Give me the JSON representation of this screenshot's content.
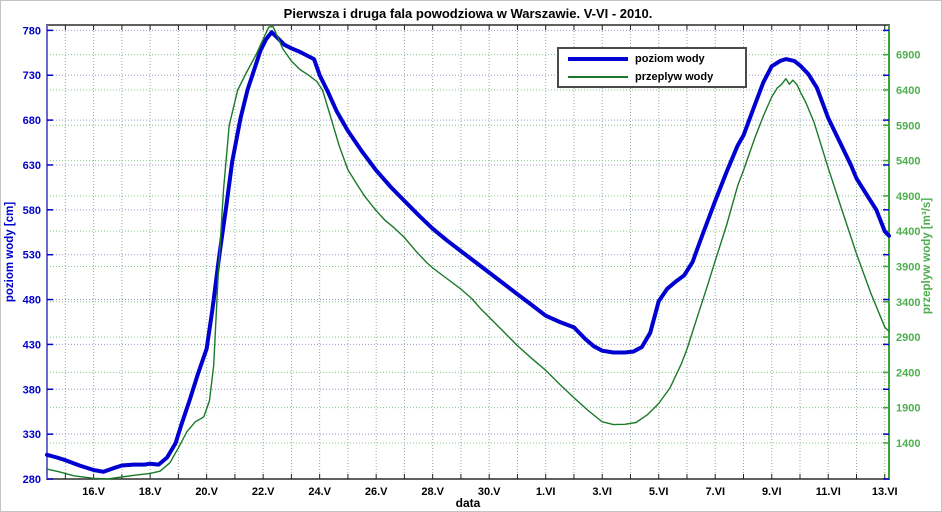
{
  "figure": {
    "title": "Pierwsza i druga fala powodziowa w Warszawie. V-VI - 2010.",
    "xlabel": "data"
  },
  "legend": {
    "entries": [
      {
        "label": "poziom wody",
        "color": "#0000d0",
        "sample_height": 4
      },
      {
        "label": "przeplyw wody",
        "color": "#1b7a2a",
        "sample_height": 2
      }
    ]
  },
  "colors": {
    "level_blue": "#0000d0",
    "flow_green": "#1b7a2a",
    "left_axis_text": "#0000cc",
    "right_axis_text": "#4fae4f",
    "left_spine": "#6a6ad0",
    "right_spine": "#3aa33a",
    "grid_left": "#9898cc",
    "grid_right": "#8cc48c",
    "grid_vertical": "#8fae9a",
    "frame": "#2b2b2b",
    "tick_black": "#222222"
  },
  "chart_data": {
    "type": "line",
    "title": "Pierwsza i druga fala powodziowa w Warszawie. V-VI - 2010.",
    "xlabel": "data",
    "grid": true,
    "legend_position": "top-center-right",
    "x_encoding": "day number read from axis; May: 14-31, June: 32-44 (32 = 1.VI, 44 = 13.VI)",
    "x_axis": {
      "lim": [
        14.35,
        44.15
      ],
      "minor_grid_step": 1,
      "major_tick_positions": [
        16,
        18,
        20,
        22,
        24,
        26,
        28,
        30,
        32,
        34,
        36,
        38,
        40,
        42,
        44
      ],
      "major_tick_labels": [
        "16.V",
        "18.V",
        "20.V",
        "22.V",
        "24.V",
        "26.V",
        "28.V",
        "30.V",
        "1.VI",
        "3.VI",
        "5.VI",
        "7.VI",
        "9.VI",
        "11.VI",
        "13.VI"
      ]
    },
    "left_axis": {
      "label": "poziom wody [cm]",
      "unit": "cm",
      "lim": [
        280,
        786
      ],
      "ticks": [
        280,
        330,
        380,
        430,
        480,
        530,
        580,
        630,
        680,
        730,
        780
      ]
    },
    "right_axis": {
      "label": "przeplyw wody [m³/s]",
      "unit": "m³/s",
      "lim": [
        890,
        7320
      ],
      "ticks": [
        1400,
        1900,
        2400,
        2900,
        3400,
        3900,
        4400,
        4900,
        5400,
        5900,
        6400,
        6900
      ]
    },
    "series": [
      {
        "id": "poziom-wody",
        "name": "poziom wody",
        "axis": "left",
        "color": "#0000d0",
        "width": 4,
        "points": [
          [
            14.35,
            307
          ],
          [
            14.7,
            304
          ],
          [
            15,
            301
          ],
          [
            15.5,
            295
          ],
          [
            16,
            290
          ],
          [
            16.35,
            288
          ],
          [
            16.7,
            292
          ],
          [
            17,
            295
          ],
          [
            17.4,
            296
          ],
          [
            17.8,
            296
          ],
          [
            18,
            297
          ],
          [
            18.3,
            296
          ],
          [
            18.6,
            304
          ],
          [
            18.9,
            320
          ],
          [
            19.1,
            340
          ],
          [
            19.4,
            368
          ],
          [
            19.7,
            398
          ],
          [
            20,
            425
          ],
          [
            20.2,
            468
          ],
          [
            20.45,
            530
          ],
          [
            20.7,
            585
          ],
          [
            20.9,
            633
          ],
          [
            21.2,
            682
          ],
          [
            21.45,
            714
          ],
          [
            21.7,
            738
          ],
          [
            21.9,
            757
          ],
          [
            22.1,
            770
          ],
          [
            22.3,
            778
          ],
          [
            22.5,
            772
          ],
          [
            22.75,
            764
          ],
          [
            23,
            760
          ],
          [
            23.3,
            756
          ],
          [
            23.55,
            752
          ],
          [
            23.8,
            748
          ],
          [
            24,
            730
          ],
          [
            24.3,
            711
          ],
          [
            24.6,
            690
          ],
          [
            25,
            668
          ],
          [
            25.5,
            645
          ],
          [
            26,
            624
          ],
          [
            26.5,
            606
          ],
          [
            27,
            590
          ],
          [
            27.5,
            574
          ],
          [
            28,
            559
          ],
          [
            28.5,
            546
          ],
          [
            29,
            534
          ],
          [
            29.5,
            522
          ],
          [
            30,
            510
          ],
          [
            30.5,
            498
          ],
          [
            31,
            486
          ],
          [
            31.5,
            474
          ],
          [
            32,
            462
          ],
          [
            32.5,
            455
          ],
          [
            33,
            449
          ],
          [
            33.4,
            436
          ],
          [
            33.7,
            428
          ],
          [
            34,
            423
          ],
          [
            34.4,
            421
          ],
          [
            34.8,
            421
          ],
          [
            35.1,
            422
          ],
          [
            35.4,
            427
          ],
          [
            35.7,
            443
          ],
          [
            36,
            478
          ],
          [
            36.3,
            492
          ],
          [
            36.6,
            500
          ],
          [
            36.9,
            507
          ],
          [
            37.2,
            522
          ],
          [
            37.5,
            548
          ],
          [
            38,
            590
          ],
          [
            38.4,
            622
          ],
          [
            38.8,
            652
          ],
          [
            39,
            663
          ],
          [
            39.4,
            697
          ],
          [
            39.7,
            722
          ],
          [
            40,
            740
          ],
          [
            40.3,
            746
          ],
          [
            40.5,
            748
          ],
          [
            40.8,
            746
          ],
          [
            41,
            741
          ],
          [
            41.3,
            731
          ],
          [
            41.6,
            716
          ],
          [
            42,
            682
          ],
          [
            42.4,
            656
          ],
          [
            42.8,
            630
          ],
          [
            43,
            615
          ],
          [
            43.4,
            595
          ],
          [
            43.7,
            580
          ],
          [
            44,
            556
          ],
          [
            44.15,
            551
          ]
        ]
      },
      {
        "id": "przeplyw-wody",
        "name": "przeplyw wody",
        "axis": "right",
        "color": "#1b7a2a",
        "width": 1.4,
        "points": [
          [
            14.35,
            1030
          ],
          [
            14.8,
            990
          ],
          [
            15.3,
            935
          ],
          [
            16,
            900
          ],
          [
            16.5,
            890
          ],
          [
            17,
            920
          ],
          [
            17.5,
            945
          ],
          [
            18,
            970
          ],
          [
            18.35,
            1000
          ],
          [
            18.7,
            1120
          ],
          [
            19,
            1330
          ],
          [
            19.3,
            1560
          ],
          [
            19.6,
            1700
          ],
          [
            19.9,
            1770
          ],
          [
            20.1,
            2000
          ],
          [
            20.25,
            2500
          ],
          [
            20.4,
            3700
          ],
          [
            20.6,
            5000
          ],
          [
            20.8,
            5900
          ],
          [
            21.1,
            6400
          ],
          [
            21.4,
            6640
          ],
          [
            21.75,
            6900
          ],
          [
            22,
            7120
          ],
          [
            22.2,
            7290
          ],
          [
            22.35,
            7300
          ],
          [
            22.5,
            7160
          ],
          [
            22.7,
            6980
          ],
          [
            23,
            6810
          ],
          [
            23.3,
            6690
          ],
          [
            23.6,
            6610
          ],
          [
            23.9,
            6520
          ],
          [
            24.1,
            6400
          ],
          [
            24.4,
            6000
          ],
          [
            24.7,
            5600
          ],
          [
            25,
            5270
          ],
          [
            25.3,
            5075
          ],
          [
            25.6,
            4890
          ],
          [
            26,
            4690
          ],
          [
            26.3,
            4560
          ],
          [
            26.6,
            4460
          ],
          [
            27,
            4310
          ],
          [
            27.4,
            4120
          ],
          [
            27.8,
            3950
          ],
          [
            28,
            3880
          ],
          [
            28.5,
            3730
          ],
          [
            29,
            3580
          ],
          [
            29.4,
            3440
          ],
          [
            29.7,
            3300
          ],
          [
            30,
            3180
          ],
          [
            30.5,
            2980
          ],
          [
            31,
            2780
          ],
          [
            31.5,
            2600
          ],
          [
            32,
            2430
          ],
          [
            32.5,
            2230
          ],
          [
            33,
            2040
          ],
          [
            33.5,
            1860
          ],
          [
            34,
            1700
          ],
          [
            34.4,
            1660
          ],
          [
            34.8,
            1665
          ],
          [
            35.2,
            1690
          ],
          [
            35.6,
            1800
          ],
          [
            36,
            1960
          ],
          [
            36.4,
            2180
          ],
          [
            36.8,
            2520
          ],
          [
            37,
            2730
          ],
          [
            37.4,
            3230
          ],
          [
            37.7,
            3600
          ],
          [
            38,
            3980
          ],
          [
            38.4,
            4480
          ],
          [
            38.8,
            5050
          ],
          [
            39,
            5260
          ],
          [
            39.4,
            5720
          ],
          [
            39.7,
            6030
          ],
          [
            40,
            6300
          ],
          [
            40.2,
            6430
          ],
          [
            40.35,
            6480
          ],
          [
            40.5,
            6560
          ],
          [
            40.62,
            6480
          ],
          [
            40.75,
            6540
          ],
          [
            40.9,
            6470
          ],
          [
            41,
            6380
          ],
          [
            41.2,
            6230
          ],
          [
            41.5,
            5940
          ],
          [
            42,
            5290
          ],
          [
            42.5,
            4680
          ],
          [
            43,
            4080
          ],
          [
            43.5,
            3530
          ],
          [
            44,
            3040
          ],
          [
            44.15,
            2980
          ]
        ]
      }
    ]
  }
}
